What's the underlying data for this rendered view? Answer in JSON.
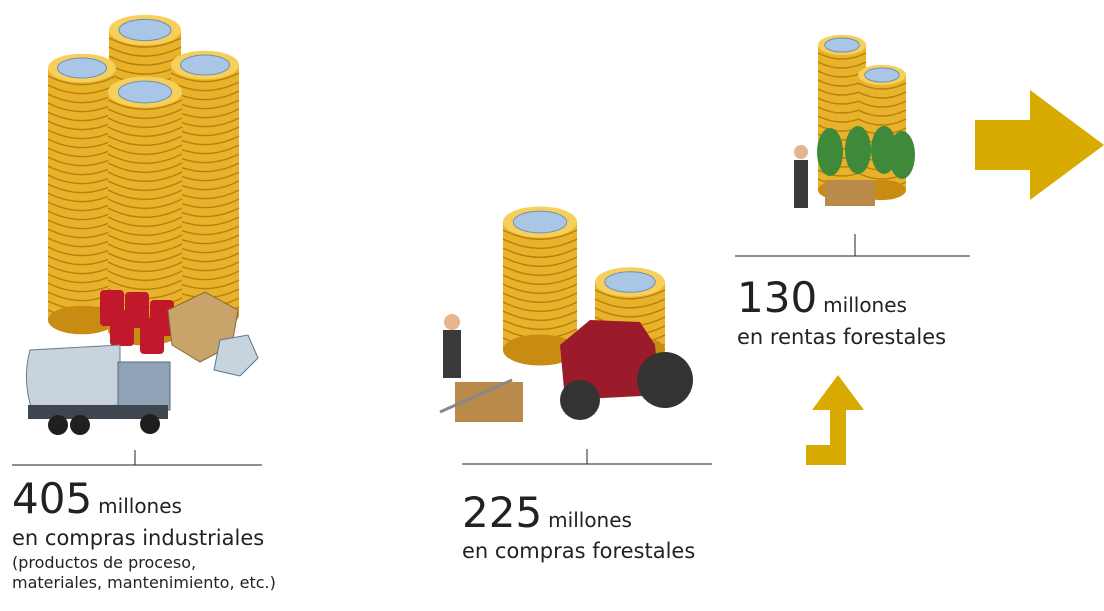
{
  "items": [
    {
      "value": 405,
      "unit": "millones",
      "description": "en compras industriales",
      "note": [
        "(productos de proceso,",
        "materiales, mantenimiento, etc.)"
      ]
    },
    {
      "value": 225,
      "unit": "millones",
      "description": "en compras forestales"
    },
    {
      "value": 130,
      "unit": "millones",
      "description": "en rentas forestales"
    }
  ]
}
